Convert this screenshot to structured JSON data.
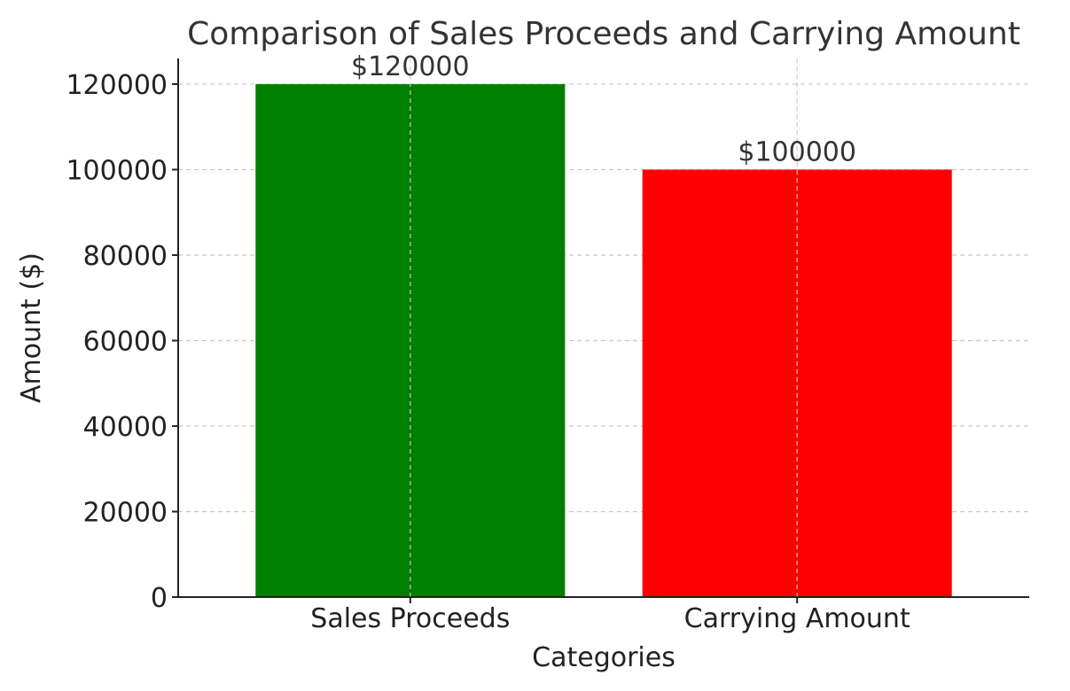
{
  "chart_data": {
    "type": "bar",
    "title": "Comparison of Sales Proceeds and Carrying Amount",
    "xlabel": "Categories",
    "ylabel": "Amount ($)",
    "categories": [
      "Sales Proceeds",
      "Carrying Amount"
    ],
    "values": [
      120000,
      100000
    ],
    "data_labels": [
      "$120000",
      "$100000"
    ],
    "colors": [
      "#008000",
      "#ff0000"
    ],
    "ylim": [
      0,
      126000
    ],
    "yticks": [
      0,
      20000,
      40000,
      60000,
      80000,
      100000,
      120000
    ],
    "ytick_labels": [
      "0",
      "20000",
      "40000",
      "60000",
      "80000",
      "100000",
      "120000"
    ],
    "grid": true
  }
}
